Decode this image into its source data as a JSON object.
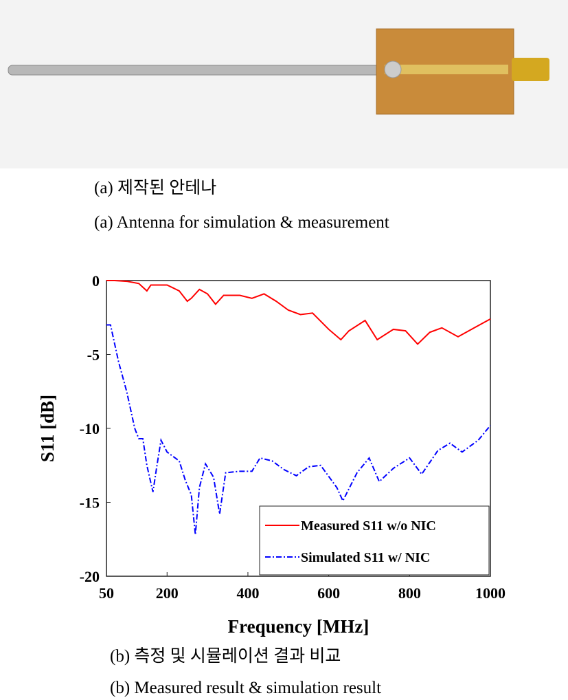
{
  "captions": {
    "a_ko": "(a) 제작된 안테나",
    "a_en": "(a) Antenna for simulation & measurement",
    "b_ko": "(b) 측정 및 시뮬레이션 결과 비교",
    "b_en": "(b) Measured result & simulation result"
  },
  "chart_data": {
    "type": "line",
    "xlabel": "Frequency [MHz]",
    "ylabel": "S11 [dB]",
    "xlim": [
      50,
      1000
    ],
    "xticks": [
      50,
      200,
      400,
      600,
      800,
      1000
    ],
    "ylim": [
      -20,
      0
    ],
    "yticks": [
      -20,
      -15,
      -10,
      -5,
      0
    ],
    "grid": false,
    "legend": "bottom-right",
    "series": [
      {
        "name": "Measured S11 w/o NIC",
        "color": "#ff0000",
        "dash": "solid",
        "x": [
          50,
          70,
          100,
          130,
          150,
          160,
          200,
          230,
          250,
          260,
          280,
          300,
          320,
          340,
          380,
          410,
          440,
          470,
          500,
          530,
          560,
          600,
          630,
          650,
          690,
          720,
          760,
          790,
          820,
          850,
          880,
          920,
          960,
          1000
        ],
        "values": [
          0,
          0,
          -0.05,
          -0.2,
          -0.7,
          -0.3,
          -0.3,
          -0.7,
          -1.4,
          -1.2,
          -0.6,
          -0.9,
          -1.6,
          -1.0,
          -1.0,
          -1.2,
          -0.9,
          -1.4,
          -2.0,
          -2.3,
          -2.2,
          -3.3,
          -4.0,
          -3.4,
          -2.7,
          -4.0,
          -3.3,
          -3.4,
          -4.3,
          -3.5,
          -3.2,
          -3.8,
          -3.2,
          -2.6
        ]
      },
      {
        "name": "Simulated S11 w/ NIC",
        "color": "#0000ff",
        "dash": "dashdot",
        "x": [
          50,
          60,
          80,
          100,
          120,
          130,
          140,
          150,
          165,
          175,
          185,
          200,
          230,
          245,
          260,
          270,
          280,
          295,
          315,
          330,
          345,
          380,
          410,
          430,
          460,
          490,
          520,
          550,
          580,
          620,
          635,
          670,
          700,
          725,
          760,
          800,
          830,
          870,
          900,
          930,
          970,
          1000
        ],
        "values": [
          -3,
          -3,
          -5.5,
          -7.5,
          -10,
          -10.7,
          -10.7,
          -12.5,
          -14.3,
          -12.5,
          -10.8,
          -11.6,
          -12.2,
          -13.5,
          -14.5,
          -17.2,
          -14.0,
          -12.4,
          -13.3,
          -15.8,
          -13.0,
          -12.9,
          -12.9,
          -12.0,
          -12.2,
          -12.8,
          -13.2,
          -12.6,
          -12.5,
          -14.0,
          -14.9,
          -13.0,
          -12.0,
          -13.6,
          -12.7,
          -12.0,
          -13.1,
          -11.5,
          -11.0,
          -11.6,
          -10.8,
          -9.8
        ]
      }
    ]
  }
}
